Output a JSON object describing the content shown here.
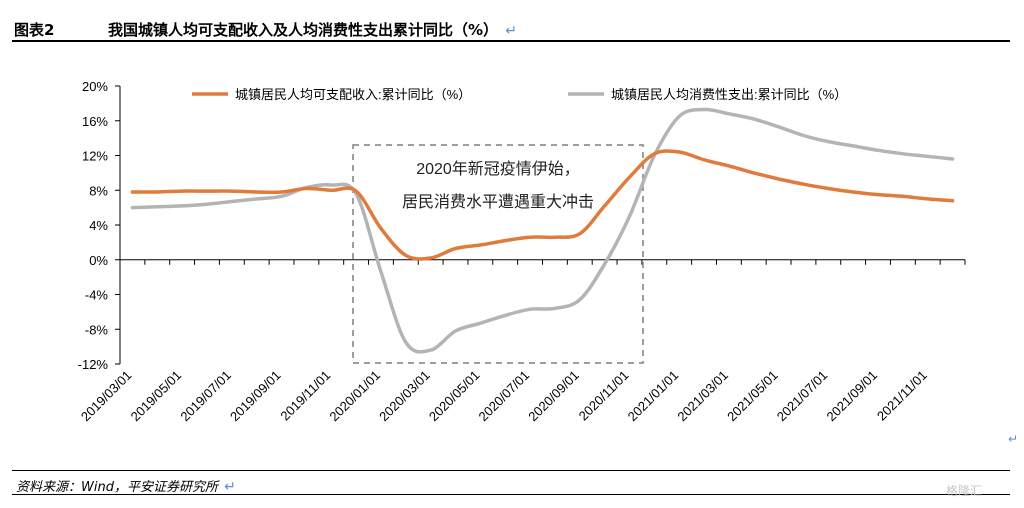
{
  "header": {
    "figure_label": "图表2",
    "title": "我国城镇人均可支配收入及人均消费性支出累计同比（%）",
    "return_glyph": "↵"
  },
  "annotation": {
    "line1": "2020年新冠疫情伊始，",
    "line2": "居民消费水平遭遇重大冲击"
  },
  "footer": {
    "source": "资料来源：Wind，平安证券研究所",
    "return_glyph": "↵",
    "watermark": "格隆汇"
  },
  "chart_data": {
    "type": "line",
    "x": [
      "2019/03",
      "2019/04",
      "2019/05",
      "2019/06",
      "2019/07",
      "2019/08",
      "2019/09",
      "2019/10",
      "2019/11",
      "2019/12",
      "2020/01",
      "2020/02",
      "2020/03",
      "2020/04",
      "2020/05",
      "2020/06",
      "2020/07",
      "2020/08",
      "2020/09",
      "2020/10",
      "2020/11",
      "2020/12",
      "2021/01",
      "2021/02",
      "2021/03",
      "2021/04",
      "2021/05",
      "2021/06",
      "2021/07",
      "2021/08",
      "2021/09",
      "2021/10",
      "2021/11",
      "2021/12"
    ],
    "tick_labels": [
      "2019/03/01",
      "2019/05/01",
      "2019/07/01",
      "2019/09/01",
      "2019/11/01",
      "2020/01/01",
      "2020/03/01",
      "2020/05/01",
      "2020/07/01",
      "2020/09/01",
      "2020/11/01",
      "2021/01/01",
      "2021/03/01",
      "2021/05/01",
      "2021/07/01",
      "2021/09/01",
      "2021/11/01"
    ],
    "series": [
      {
        "name": "城镇居民人均可支配收入:累计同比（%）",
        "color": "#e07b3c",
        "values": [
          7.8,
          7.8,
          7.9,
          7.9,
          7.9,
          7.8,
          7.8,
          8.2,
          8.0,
          7.9,
          3.6,
          0.5,
          0.2,
          1.3,
          1.7,
          2.2,
          2.6,
          2.6,
          3.0,
          6.2,
          9.5,
          12.2,
          12.4,
          11.5,
          10.8,
          10.0,
          9.3,
          8.7,
          8.2,
          7.8,
          7.5,
          7.3,
          7.0,
          6.8
        ]
      },
      {
        "name": "城镇居民人均消费性支出:累计同比（%）",
        "color": "#b4b4b4",
        "values": [
          6.0,
          6.1,
          6.2,
          6.4,
          6.7,
          7.0,
          7.3,
          8.3,
          8.6,
          7.6,
          -1.4,
          -9.5,
          -10.4,
          -8.2,
          -7.3,
          -6.4,
          -5.7,
          -5.6,
          -4.6,
          -0.5,
          5.0,
          12.0,
          16.5,
          17.3,
          16.8,
          16.2,
          15.3,
          14.3,
          13.6,
          13.1,
          12.6,
          12.2,
          11.9,
          11.6
        ]
      }
    ],
    "ylim": [
      -12,
      20
    ],
    "yticks": [
      -12,
      -8,
      -4,
      0,
      4,
      8,
      12,
      16,
      20
    ],
    "ytick_labels": [
      "-12%",
      "-8%",
      "-4%",
      "0%",
      "4%",
      "8%",
      "12%",
      "16%",
      "20%"
    ],
    "legend_position": "top",
    "grid": false
  }
}
